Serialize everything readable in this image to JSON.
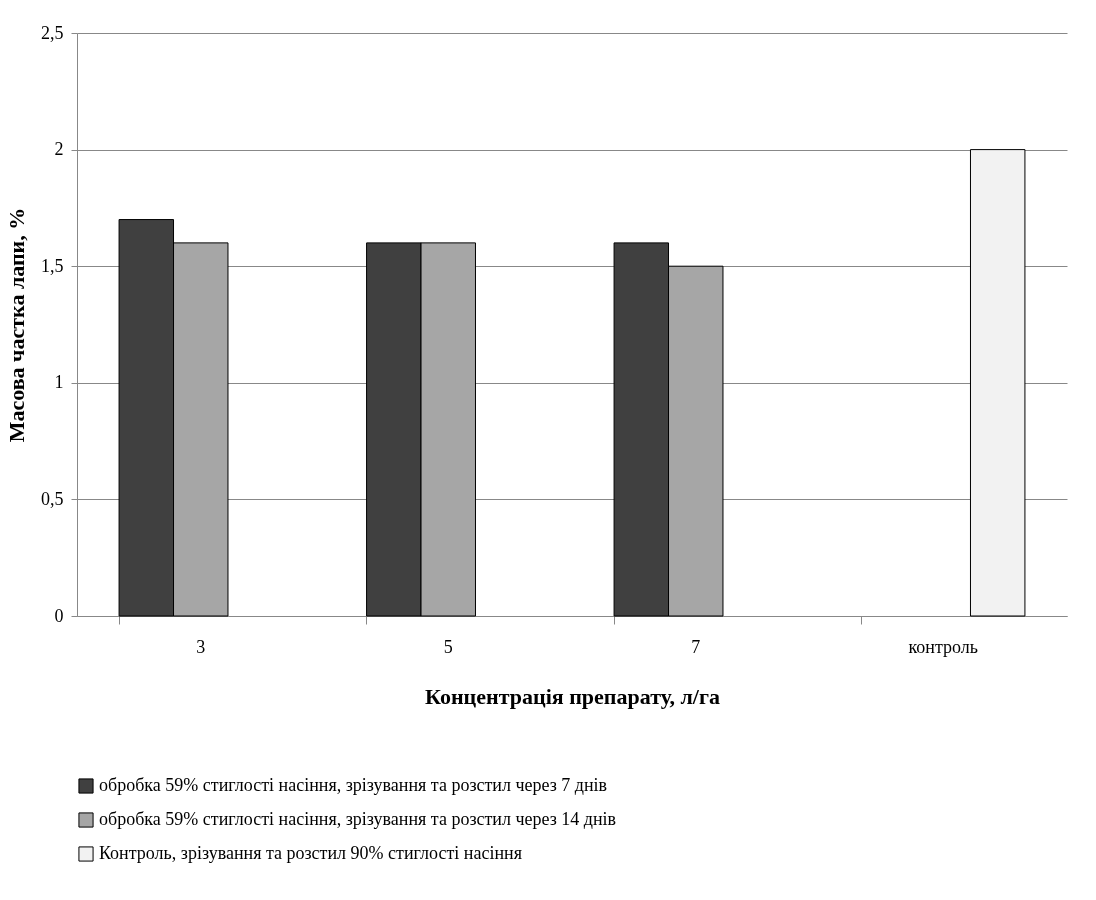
{
  "chart_data": {
    "type": "bar",
    "xlabel": "Концентрація препарату, л/га",
    "ylabel": "Масова частка лапи, %",
    "categories": [
      "3",
      "5",
      "7",
      "контроль"
    ],
    "series": [
      {
        "name": "обробка 59% стиглості насіння, зрізування та розстил через 7 днів",
        "color": "#404040",
        "values": [
          1.7,
          1.6,
          1.6,
          null
        ]
      },
      {
        "name": "обробка 59% стиглості насіння, зрізування та розстил через 14 днів",
        "color": "#a6a6a6",
        "values": [
          1.6,
          1.6,
          1.5,
          null
        ]
      },
      {
        "name": "Контроль, зрізування та розстил 90% стиглості насіння",
        "color": "#f2f2f2",
        "values": [
          null,
          null,
          null,
          2
        ]
      }
    ],
    "ylim": [
      0,
      2.5
    ],
    "yticks": [
      0,
      {
        "value": 0.5,
        "label": "0,5"
      },
      1,
      {
        "value": 1.5,
        "label": "1,5"
      },
      2,
      {
        "value": 2.5,
        "label": "2,5"
      }
    ],
    "grid": "y",
    "legend": "bottom"
  }
}
